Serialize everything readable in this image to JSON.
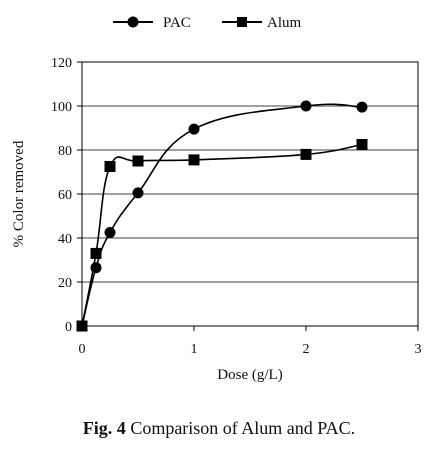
{
  "caption": {
    "label": "Fig. 4",
    "text": "Comparison of Alum and PAC."
  },
  "chart_data": {
    "type": "line",
    "xlabel": "Dose (g/L)",
    "ylabel": "% Color removed",
    "xlim": [
      0,
      3
    ],
    "ylim": [
      0,
      120
    ],
    "xticks": [
      0,
      1,
      2,
      3
    ],
    "yticks": [
      0,
      20,
      40,
      60,
      80,
      100,
      120
    ],
    "grid": "horizontal",
    "legend": "top",
    "series": [
      {
        "name": "PAC",
        "marker": "circle",
        "color": "#000000",
        "x": [
          0,
          0.125,
          0.25,
          0.5,
          1,
          2,
          2.5
        ],
        "y": [
          0,
          26.5,
          42.5,
          60.5,
          89.5,
          100,
          99.5
        ]
      },
      {
        "name": "Alum",
        "marker": "square",
        "color": "#000000",
        "x": [
          0,
          0.125,
          0.25,
          0.5,
          1,
          2,
          2.5
        ],
        "y": [
          0,
          33,
          72.5,
          75,
          75.5,
          78,
          82.5
        ]
      }
    ]
  }
}
